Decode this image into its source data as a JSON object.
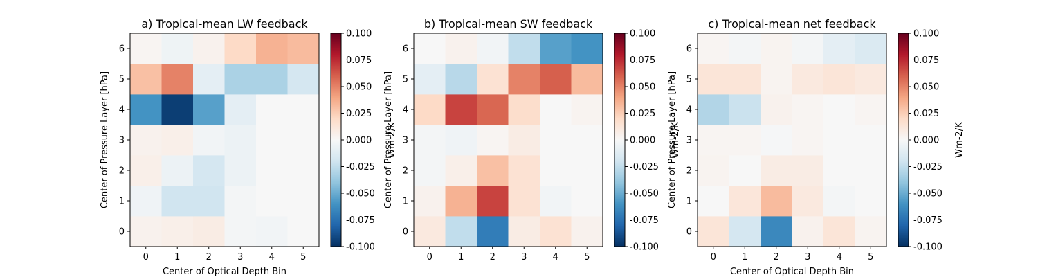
{
  "chart_data": [
    {
      "type": "heatmap",
      "title": "a) Tropical-mean LW feedback",
      "xlabel": "Center of Optical Depth Bin",
      "ylabel": "Center of Pressure Layer [hPa]",
      "colorbar_label": "",
      "x_ticks": [
        "0",
        "1",
        "2",
        "3",
        "4",
        "5"
      ],
      "y_ticks": [
        "0",
        "1",
        "2",
        "3",
        "4",
        "5",
        "6"
      ],
      "colorbar_ticks": [
        "-0.100",
        "-0.075",
        "-0.050",
        "-0.025",
        "0.000",
        "0.025",
        "0.050",
        "0.075",
        "0.100"
      ],
      "vmin": -0.1,
      "vmax": 0.1,
      "colormap": "RdBu_r",
      "values": [
        [
          0.004,
          0.006,
          0.008,
          -0.002,
          -0.003,
          0.0
        ],
        [
          -0.004,
          -0.02,
          -0.02,
          -0.002,
          0.0,
          0.0
        ],
        [
          0.006,
          -0.006,
          -0.018,
          -0.006,
          0.0,
          0.0
        ],
        [
          0.004,
          0.006,
          -0.003,
          -0.006,
          0.0,
          0.0
        ],
        [
          -0.06,
          -0.095,
          -0.055,
          -0.01,
          0.0,
          0.0
        ],
        [
          0.03,
          0.05,
          -0.01,
          -0.032,
          -0.032,
          -0.018
        ],
        [
          0.002,
          -0.005,
          0.004,
          0.02,
          0.035,
          0.032
        ]
      ]
    },
    {
      "type": "heatmap",
      "title": "b) Tropical-mean SW feedback",
      "xlabel": "",
      "ylabel": "Center of Pressure Layer [hPa]",
      "colorbar_label": "Wm-2/K",
      "x_ticks": [
        "0",
        "1",
        "2",
        "3",
        "4",
        "5"
      ],
      "y_ticks": [
        "0",
        "1",
        "2",
        "3",
        "4",
        "5",
        "6"
      ],
      "colorbar_ticks": [
        "-0.100",
        "-0.075",
        "-0.050",
        "-0.025",
        "0.000",
        "0.025",
        "0.050",
        "0.075",
        "0.100"
      ],
      "vmin": -0.1,
      "vmax": 0.1,
      "colormap": "RdBu_r",
      "values": [
        [
          0.01,
          -0.025,
          -0.07,
          0.008,
          0.015,
          0.004
        ],
        [
          0.004,
          0.035,
          0.068,
          0.015,
          -0.003,
          0.0
        ],
        [
          -0.002,
          0.006,
          0.03,
          0.015,
          0.0,
          0.0
        ],
        [
          -0.002,
          -0.004,
          0.002,
          0.008,
          0.0,
          0.0
        ],
        [
          0.02,
          0.068,
          0.058,
          0.018,
          0.0,
          0.003
        ],
        [
          -0.01,
          -0.028,
          0.015,
          0.05,
          0.06,
          0.032
        ],
        [
          0.0,
          0.004,
          -0.003,
          -0.025,
          -0.055,
          -0.06
        ]
      ]
    },
    {
      "type": "heatmap",
      "title": "c) Tropical-mean net feedback",
      "xlabel": "Center of Optical Depth Bin",
      "ylabel": "Center of Pressure Layer [hPa]",
      "colorbar_label": "Wm-2/K",
      "x_ticks": [
        "0",
        "1",
        "2",
        "3",
        "4",
        "5"
      ],
      "y_ticks": [
        "0",
        "1",
        "2",
        "3",
        "4",
        "5",
        "6"
      ],
      "colorbar_ticks": [
        "-0.100",
        "-0.075",
        "-0.050",
        "-0.025",
        "0.000",
        "0.025",
        "0.050",
        "0.075",
        "0.100"
      ],
      "vmin": -0.1,
      "vmax": 0.1,
      "colormap": "RdBu_r",
      "values": [
        [
          0.013,
          -0.018,
          -0.065,
          0.004,
          0.013,
          0.003
        ],
        [
          0.0,
          0.012,
          0.032,
          0.01,
          -0.002,
          0.0
        ],
        [
          0.003,
          0.0,
          0.008,
          0.008,
          0.0,
          0.0
        ],
        [
          0.002,
          0.002,
          -0.001,
          0.002,
          0.0,
          0.0
        ],
        [
          -0.03,
          -0.022,
          0.004,
          0.002,
          0.0,
          0.002
        ],
        [
          0.013,
          0.013,
          0.003,
          0.01,
          0.013,
          0.01
        ],
        [
          0.002,
          -0.002,
          0.003,
          -0.002,
          -0.01,
          -0.015
        ]
      ]
    }
  ]
}
